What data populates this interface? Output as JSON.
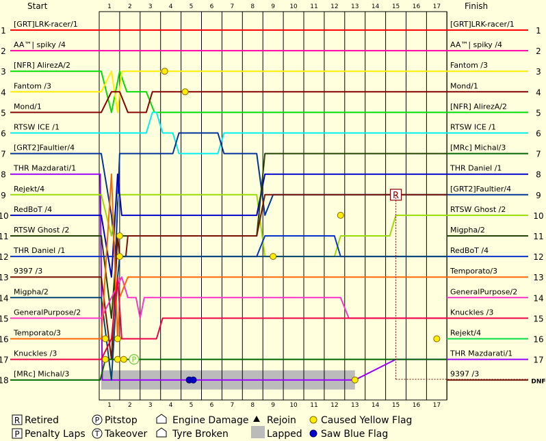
{
  "chart_data": {
    "type": "line",
    "header": {
      "start": "Start",
      "finish": "Finish"
    },
    "laps": [
      1,
      2,
      3,
      4,
      5,
      6,
      7,
      8,
      9,
      10,
      11,
      12,
      13,
      14,
      15,
      16,
      17
    ],
    "positions": [
      1,
      2,
      3,
      4,
      5,
      6,
      7,
      8,
      9,
      10,
      11,
      12,
      13,
      14,
      15,
      16,
      17,
      18
    ],
    "start_grid": [
      "[GRT]LRK-racer/1",
      "AA™| spiky /4",
      "[NFR] AlirezA/2",
      "Fantom /3",
      "Mond/1",
      "RTSW ICE /1",
      "[GRT2]Faultier/4",
      "THR Mazdarati/1",
      "Rejekt/4",
      "RedBoT /4",
      "RTSW Ghost /2",
      "THR Daniel /1",
      "9397 /3",
      "Migpha/2",
      "GeneralPurpose/2",
      "Temporato/3",
      "Knuckles /3",
      "[MRc] Michal/3"
    ],
    "finish_order": [
      "[GRT]LRK-racer/1",
      "AA™| spiky /4",
      "Fantom /3",
      "Mond/1",
      "[NFR] AlirezA/2",
      "RTSW ICE /1",
      "[MRc] Michal/3",
      "THR Daniel /1",
      "[GRT2]Faultier/4",
      "RTSW Ghost /2",
      "Migpha/2",
      "RedBoT /4",
      "Temporato/3",
      "GeneralPurpose/2",
      "Knuckles /3",
      "Rejekt/4",
      "THR Mazdarati/1",
      "9397 /3"
    ],
    "finish_positions": [
      "1",
      "2",
      "3",
      "4",
      "5",
      "6",
      "7",
      "8",
      "9",
      "10",
      "11",
      "12",
      "13",
      "14",
      "15",
      "16",
      "17",
      "DNF"
    ],
    "series": [
      {
        "color": "#ff0000",
        "points": [
          [
            0,
            1
          ],
          [
            17,
            1
          ]
        ]
      },
      {
        "color": "#ff00aa",
        "points": [
          [
            0,
            2
          ],
          [
            17,
            2
          ]
        ]
      },
      {
        "color": "#00dd00",
        "points": [
          [
            0,
            3
          ],
          [
            0.1,
            3
          ],
          [
            0.6,
            5
          ],
          [
            1,
            3
          ],
          [
            1.35,
            4
          ],
          [
            2.3,
            4
          ],
          [
            2.7,
            5
          ],
          [
            17,
            5
          ]
        ]
      },
      {
        "color": "#ffee00",
        "points": [
          [
            0,
            4
          ],
          [
            0.1,
            4
          ],
          [
            0.6,
            3
          ],
          [
            0.9,
            5
          ],
          [
            1.1,
            3
          ],
          [
            17,
            3
          ]
        ]
      },
      {
        "color": "#880000",
        "points": [
          [
            0,
            5
          ],
          [
            0.1,
            5
          ],
          [
            0.6,
            4
          ],
          [
            1,
            4
          ],
          [
            1.4,
            5
          ],
          [
            2.3,
            5
          ],
          [
            2.6,
            4
          ],
          [
            17,
            4
          ]
        ]
      },
      {
        "color": "#00eeee",
        "points": [
          [
            0,
            6
          ],
          [
            2.3,
            6
          ],
          [
            2.6,
            5
          ],
          [
            2.8,
            5
          ],
          [
            3.1,
            6
          ],
          [
            3.6,
            6
          ],
          [
            3.9,
            7
          ],
          [
            5.8,
            7
          ],
          [
            6.1,
            6
          ],
          [
            17,
            6
          ]
        ]
      },
      {
        "color": "#003399",
        "points": [
          [
            0,
            7
          ],
          [
            0.1,
            7
          ],
          [
            0.6,
            10
          ],
          [
            0.8,
            12
          ],
          [
            1,
            7
          ],
          [
            3.6,
            7
          ],
          [
            3.9,
            6
          ],
          [
            5.8,
            6
          ],
          [
            6.1,
            7
          ],
          [
            7.7,
            7
          ],
          [
            8.1,
            10
          ],
          [
            8.5,
            9
          ],
          [
            17,
            9
          ]
        ]
      },
      {
        "color": "#9900ff",
        "points": [
          [
            0,
            8
          ],
          [
            0.05,
            8
          ],
          [
            0.15,
            18
          ],
          [
            12.5,
            18
          ],
          [
            14.5,
            17
          ],
          [
            17,
            17
          ]
        ]
      },
      {
        "color": "#99dd00",
        "points": [
          [
            0,
            9
          ],
          [
            0.1,
            9
          ],
          [
            0.6,
            11
          ],
          [
            0.9,
            9
          ],
          [
            1,
            9
          ],
          [
            7.7,
            9
          ],
          [
            8.1,
            12
          ],
          [
            11.5,
            12
          ],
          [
            11.8,
            11
          ],
          [
            14.2,
            11
          ],
          [
            14.5,
            10
          ],
          [
            17,
            10
          ]
        ]
      },
      {
        "color": "#0000cc",
        "points": [
          [
            0,
            10
          ],
          [
            0.1,
            10
          ],
          [
            0.6,
            13
          ],
          [
            0.9,
            8
          ],
          [
            1.1,
            10
          ],
          [
            7.7,
            10
          ],
          [
            8.1,
            8
          ],
          [
            17,
            8
          ]
        ]
      },
      {
        "color": "#224400",
        "points": [
          [
            0,
            11
          ],
          [
            0.1,
            11
          ],
          [
            0.6,
            15
          ],
          [
            0.9,
            11
          ],
          [
            1,
            11
          ],
          [
            7.7,
            11
          ],
          [
            8.1,
            7
          ],
          [
            17,
            7
          ]
        ]
      },
      {
        "color": "#0033cc",
        "points": [
          [
            0,
            12
          ],
          [
            0.1,
            12
          ],
          [
            0.6,
            12
          ],
          [
            0.9,
            12
          ],
          [
            1,
            12
          ],
          [
            7.7,
            12
          ],
          [
            8.1,
            11
          ],
          [
            11.5,
            11
          ],
          [
            11.8,
            12
          ],
          [
            17,
            12
          ]
        ]
      },
      {
        "color": "#771100",
        "points": [
          [
            0,
            13
          ],
          [
            0.1,
            13
          ],
          [
            0.6,
            17
          ],
          [
            0.9,
            11
          ],
          [
            1,
            12
          ],
          [
            1.3,
            12
          ],
          [
            1.4,
            11
          ],
          [
            7.7,
            11
          ],
          [
            8.1,
            9
          ],
          [
            17,
            9
          ]
        ]
      },
      {
        "color": "#004477",
        "points": [
          [
            0,
            14
          ],
          [
            0.1,
            14
          ],
          [
            0.6,
            18
          ],
          [
            0.9,
            13
          ],
          [
            1,
            12
          ],
          [
            17,
            12
          ]
        ]
      },
      {
        "color": "#ff33cc",
        "points": [
          [
            0,
            15
          ],
          [
            0.1,
            15
          ],
          [
            0.6,
            14
          ],
          [
            1.1,
            13
          ],
          [
            1.4,
            14
          ],
          [
            1.8,
            14
          ],
          [
            2,
            15
          ],
          [
            2.2,
            14
          ],
          [
            11.8,
            14
          ],
          [
            12.2,
            15
          ],
          [
            17,
            15
          ]
        ]
      },
      {
        "color": "#ff6600",
        "points": [
          [
            0,
            16
          ],
          [
            0.1,
            16
          ],
          [
            0.6,
            8
          ],
          [
            0.9,
            16
          ],
          [
            1,
            14
          ],
          [
            1.4,
            13
          ],
          [
            17,
            13
          ]
        ]
      },
      {
        "color": "#ee0044",
        "points": [
          [
            0,
            17
          ],
          [
            0.1,
            17
          ],
          [
            0.6,
            16
          ],
          [
            0.9,
            13
          ],
          [
            1.1,
            16
          ],
          [
            1.6,
            16
          ],
          [
            2.8,
            16
          ],
          [
            3.1,
            15
          ],
          [
            17,
            15
          ]
        ]
      },
      {
        "color": "#006600",
        "points": [
          [
            0,
            18
          ],
          [
            0.05,
            18
          ],
          [
            0.3,
            17
          ],
          [
            0.9,
            17
          ],
          [
            1.2,
            17
          ],
          [
            17,
            17
          ]
        ]
      }
    ],
    "retired_marker": {
      "lap": 14.5,
      "position": 9,
      "label": "R"
    },
    "pitstop_marker": {
      "lap": 1.7,
      "position": 17,
      "label": "P"
    },
    "yellow_flags": [
      [
        3.2,
        3
      ],
      [
        4.2,
        4
      ],
      [
        0.3,
        16
      ],
      [
        0.3,
        17
      ],
      [
        0.9,
        16
      ],
      [
        0.9,
        17
      ],
      [
        1,
        11
      ],
      [
        1,
        12
      ],
      [
        1.2,
        17
      ],
      [
        8.5,
        12
      ],
      [
        11.8,
        10
      ],
      [
        12.5,
        18
      ],
      [
        16.5,
        16
      ]
    ],
    "blue_flags": [
      [
        4.4,
        18
      ],
      [
        4.6,
        18
      ]
    ],
    "lapped_range": [
      0.1,
      12.5
    ],
    "legend": [
      {
        "symbol": "R",
        "label": "Retired"
      },
      {
        "symbol": "P",
        "label": "Penalty Laps"
      },
      {
        "symbol": "P",
        "label": "Pitstop"
      },
      {
        "symbol": "T",
        "label": "Takeover"
      },
      {
        "symbol": "engine",
        "label": "Engine Damage"
      },
      {
        "symbol": "tyre",
        "label": "Tyre Broken"
      },
      {
        "symbol": "rejoin",
        "label": "Rejoin"
      },
      {
        "symbol": "lapped",
        "label": "Lapped"
      },
      {
        "symbol": "yellow",
        "label": "Caused Yellow Flag"
      },
      {
        "symbol": "blue",
        "label": "Saw Blue Flag"
      }
    ]
  }
}
